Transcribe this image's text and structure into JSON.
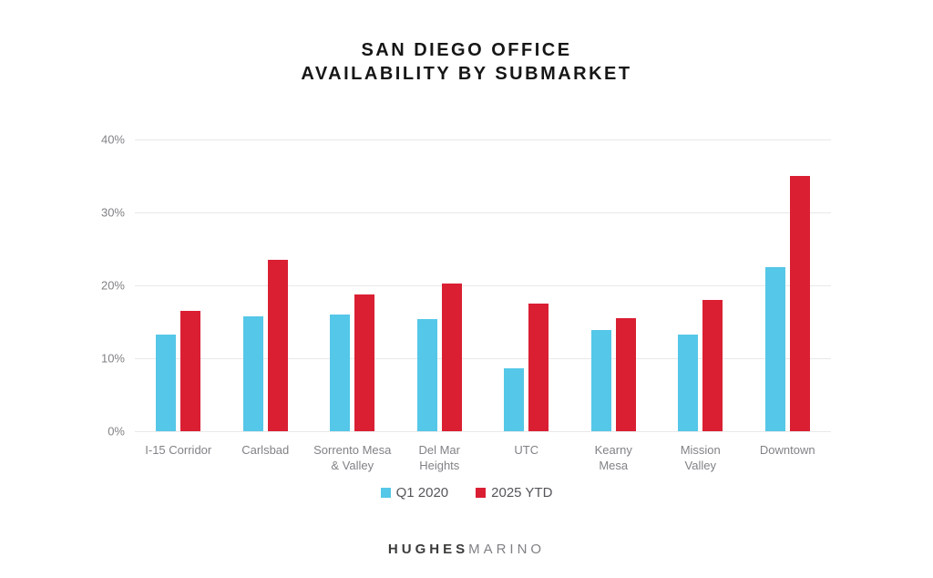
{
  "title": {
    "line1": "SAN DIEGO OFFICE",
    "line2": "AVAILABILITY BY SUBMARKET"
  },
  "chart_data": {
    "type": "bar",
    "title": "San Diego Office Availability by Submarket",
    "categories": [
      "I-15 Corridor",
      "Carlsbad",
      "Sorrento Mesa\n& Valley",
      "Del Mar\nHeights",
      "UTC",
      "Kearny\nMesa",
      "Mission\nValley",
      "Downtown"
    ],
    "series": [
      {
        "name": "Q1 2020",
        "color": "#55C7E8",
        "values": [
          13.2,
          15.8,
          16.0,
          15.4,
          8.6,
          13.9,
          13.2,
          22.5
        ]
      },
      {
        "name": "2025 YTD",
        "color": "#DA1F33",
        "values": [
          16.5,
          23.5,
          18.8,
          20.3,
          17.5,
          15.5,
          18.0,
          35.0
        ]
      }
    ],
    "xlabel": "",
    "ylabel": "",
    "ylim": [
      0,
      40
    ],
    "y_ticks": [
      0,
      10,
      20,
      30,
      40
    ],
    "y_tick_suffix": "%",
    "grid": true,
    "legend_position": "bottom"
  },
  "colors": {
    "series_blue": "#55C7E8",
    "series_red": "#DA1F33",
    "gridline": "#e9e9e9",
    "axis_text": "#808285",
    "title_text": "#161616"
  },
  "logo": {
    "part1": "HUGHES",
    "part2": "MARINO"
  }
}
